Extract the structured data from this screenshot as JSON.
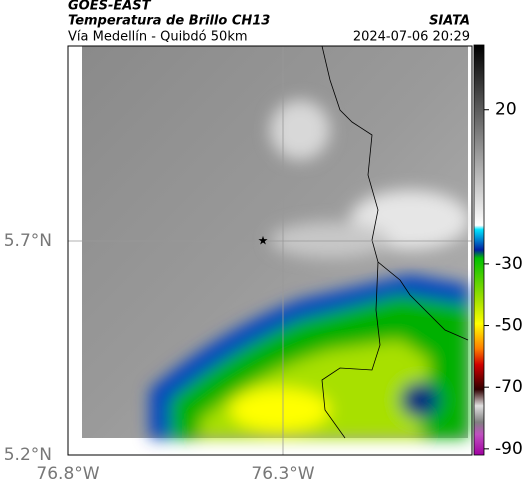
{
  "header": {
    "title": "GOES-EAST",
    "subtitle": "Temperatura de Brillo CH13",
    "location": "Vía Medellín - Quibdó 50km",
    "source": "SIATA",
    "datetime": "2024-07-06 20:29"
  },
  "map": {
    "lat_ticks": [
      "5.7°N",
      "5.2°N"
    ],
    "lon_ticks": [
      "76.8°W",
      "76.3°W"
    ]
  },
  "colorbar": {
    "lim": [
      -92,
      41
    ],
    "ticks": [
      20,
      -30,
      -50,
      -70,
      -90
    ]
  }
}
